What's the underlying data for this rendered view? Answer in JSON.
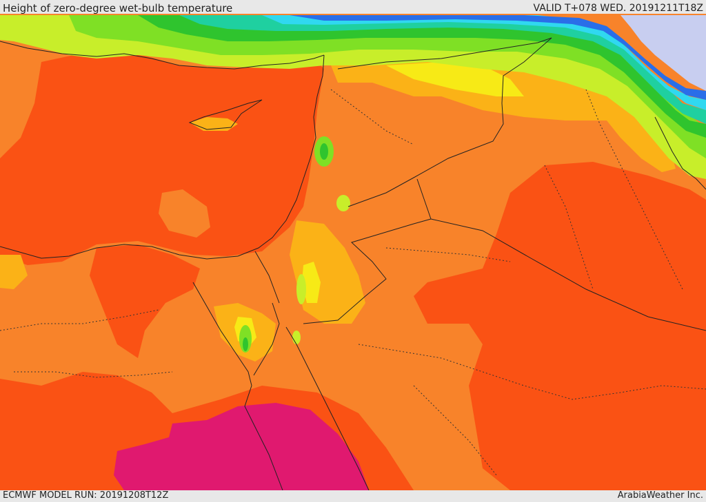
{
  "header": {
    "title": "Height of zero-degree wet-bulb temperature",
    "valid": "VALID T+078 WED. 20191211T18Z"
  },
  "footer": {
    "model_run": "ECMWF MODEL RUN: 20191208T12Z",
    "credit": "ArabiaWeather Inc."
  },
  "colors": {
    "deep_orange": "#fa5214",
    "orange": "#f8832a",
    "light_orange": "#fbb217",
    "yellow": "#f7ea16",
    "yellow_green": "#c8ee2a",
    "light_green": "#7fe025",
    "green": "#2fc42e",
    "teal": "#1fd0a0",
    "cyan": "#30d8f0",
    "blue": "#2a6ee8",
    "light_blue": "#6ea0f0",
    "lavender": "#c8cef0",
    "magenta": "#e0196f"
  }
}
